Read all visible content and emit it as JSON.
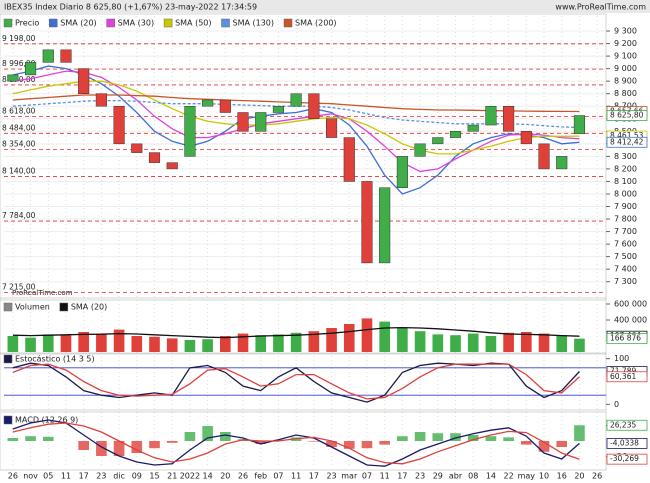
{
  "chart_data": [
    {
      "type": "candlestick",
      "title": "IBEX35 Index Diario 8 625,80 (+1,67%) 23-may-2022 17:34:59",
      "subtitle": "www.ProRealTime.com",
      "watermark": "ProRealTime.com",
      "name": "Precio",
      "categories": [
        "26",
        "nov",
        "05",
        "11",
        "17",
        "23",
        "dic",
        "09",
        "15",
        "21",
        "2022",
        "14",
        "20",
        "26",
        "feb",
        "07",
        "11",
        "17",
        "23",
        "mar",
        "07",
        "11",
        "17",
        "23",
        "29",
        "abr",
        "08",
        "14",
        "22",
        "may",
        "10",
        "16",
        "20",
        "26"
      ],
      "up_color": "#3fae49",
      "down_color": "#e0403a",
      "open": [
        8900,
        8950,
        9050,
        9150,
        9000,
        8800,
        8700,
        8400,
        8330,
        8250,
        8300,
        8700,
        8750,
        8650,
        8500,
        8650,
        8700,
        8800,
        8600,
        8450,
        8100,
        7450,
        8050,
        8300,
        8400,
        8450,
        8500,
        8550,
        8700,
        8500,
        8400,
        8200,
        8480,
        null
      ],
      "close": [
        8950,
        9050,
        9150,
        9050,
        8800,
        8700,
        8400,
        8330,
        8250,
        8200,
        8700,
        8750,
        8650,
        8500,
        8650,
        8700,
        8800,
        8600,
        8450,
        8100,
        7450,
        8050,
        8300,
        8400,
        8450,
        8500,
        8550,
        8700,
        8500,
        8400,
        8200,
        8300,
        8625.8,
        null
      ],
      "series": [
        {
          "name": "SMA (20)",
          "color": "#3d6fd6",
          "values": [
            8950,
            8980,
            9020,
            9000,
            8950,
            8880,
            8780,
            8650,
            8500,
            8420,
            8380,
            8420,
            8500,
            8600,
            8620,
            8640,
            8650,
            8680,
            8650,
            8550,
            8380,
            8150,
            8000,
            8050,
            8150,
            8300,
            8400,
            8450,
            8480,
            8470,
            8450,
            8400,
            8412.42,
            null
          ]
        },
        {
          "name": "SMA (30)",
          "color": "#e040e0",
          "values": [
            8900,
            8920,
            8950,
            8980,
            8970,
            8930,
            8850,
            8750,
            8620,
            8520,
            8450,
            8450,
            8480,
            8520,
            8560,
            8580,
            8600,
            8620,
            8640,
            8600,
            8500,
            8380,
            8250,
            8180,
            8200,
            8280,
            8350,
            8420,
            8470,
            8480,
            8470,
            8450,
            8440,
            null
          ]
        },
        {
          "name": "SMA (50)",
          "color": "#c8c800",
          "values": [
            8800,
            8830,
            8860,
            8880,
            8900,
            8900,
            8870,
            8820,
            8750,
            8680,
            8620,
            8580,
            8560,
            8550,
            8550,
            8560,
            8580,
            8600,
            8610,
            8600,
            8550,
            8480,
            8400,
            8350,
            8320,
            8320,
            8350,
            8380,
            8420,
            8450,
            8460,
            8460,
            8461.53,
            null
          ]
        },
        {
          "name": "SMA (130)",
          "color": "#5a8ee0",
          "values": [
            8700,
            8710,
            8720,
            8730,
            8740,
            8745,
            8745,
            8740,
            8730,
            8720,
            8720,
            8720,
            8715,
            8710,
            8705,
            8700,
            8700,
            8700,
            8690,
            8670,
            8640,
            8610,
            8590,
            8580,
            8570,
            8560,
            8560,
            8560,
            8560,
            8555,
            8545,
            8535,
            8530,
            null
          ]
        },
        {
          "name": "SMA (200)",
          "color": "#c9552a",
          "values": [
            8750,
            8760,
            8770,
            8780,
            8790,
            8790,
            8790,
            8785,
            8780,
            8770,
            8760,
            8755,
            8750,
            8745,
            8740,
            8735,
            8730,
            8725,
            8720,
            8710,
            8700,
            8690,
            8680,
            8675,
            8670,
            8670,
            8668,
            8665,
            8663,
            8661,
            8660,
            8659,
            8657.66,
            null
          ]
        }
      ],
      "level_color": "#e03030",
      "levels": [
        {
          "value": 9198,
          "label": "9 198,00"
        },
        {
          "value": 8996,
          "label": "8 996,00"
        },
        {
          "value": 8870,
          "label": "8 870,00"
        },
        {
          "value": 8618,
          "label": "8 618,00"
        },
        {
          "value": 8484,
          "label": "8 484,00"
        },
        {
          "value": 8354,
          "label": "8 354,00"
        },
        {
          "value": 8140,
          "label": "8 140,00"
        },
        {
          "value": 7784,
          "label": "7 784,00"
        },
        {
          "value": 7215,
          "label": "7 215,00"
        }
      ],
      "markers": [
        {
          "value": 8657.66,
          "label": "8 657,66",
          "color": "#c9552a"
        },
        {
          "value": 8625.8,
          "label": "8 625,80",
          "color": "#3fae49"
        },
        {
          "value": 8461.53,
          "label": "8 461,53",
          "color": "#c8c800"
        },
        {
          "value": 8412.42,
          "label": "8 412,42",
          "color": "#3d6fd6"
        }
      ],
      "ylim": [
        7170,
        9420
      ],
      "yticks": [
        {
          "value": 9300,
          "label": "9 300"
        },
        {
          "value": 9200,
          "label": "9 200"
        },
        {
          "value": 9100,
          "label": "9 100"
        },
        {
          "value": 9000,
          "label": "9 000"
        },
        {
          "value": 8900,
          "label": "8 900"
        },
        {
          "value": 8800,
          "label": "8 800"
        },
        {
          "value": 8700,
          "label": "8 700"
        },
        {
          "value": 8600,
          "label": "8 600"
        },
        {
          "value": 8500,
          "label": "8 500"
        },
        {
          "value": 8400,
          "label": "8 400"
        },
        {
          "value": 8300,
          "label": "8 300"
        },
        {
          "value": 8200,
          "label": "8 200"
        },
        {
          "value": 8100,
          "label": "8 100"
        },
        {
          "value": 8000,
          "label": "8 000"
        },
        {
          "value": 7900,
          "label": "7 900"
        },
        {
          "value": 7800,
          "label": "7 800"
        },
        {
          "value": 7700,
          "label": "7 700"
        },
        {
          "value": 7600,
          "label": "7 600"
        },
        {
          "value": 7500,
          "label": "7 500"
        },
        {
          "value": 7400,
          "label": "7 400"
        },
        {
          "value": 7300,
          "label": "7 300"
        }
      ],
      "grid": true
    },
    {
      "type": "volume",
      "name": "Volumen",
      "values": [
        200000,
        180000,
        220000,
        210000,
        250000,
        230000,
        280000,
        200000,
        190000,
        170000,
        150000,
        160000,
        200000,
        230000,
        210000,
        220000,
        240000,
        260000,
        300000,
        350000,
        420000,
        380000,
        300000,
        260000,
        220000,
        210000,
        230000,
        200000,
        240000,
        250000,
        230000,
        210000,
        166876,
        null
      ],
      "series": [
        {
          "name": "SMA (20)",
          "color": "#111111",
          "values": [
            210000,
            205000,
            210000,
            215000,
            220000,
            222000,
            230000,
            225000,
            215000,
            205000,
            195000,
            185000,
            180000,
            190000,
            200000,
            205000,
            210000,
            220000,
            235000,
            255000,
            280000,
            300000,
            305000,
            300000,
            290000,
            275000,
            260000,
            240000,
            225000,
            220000,
            215000,
            205000,
            197464,
            null
          ]
        }
      ],
      "markers": [
        {
          "value": 197464,
          "label": "197 464",
          "color": "#111111"
        },
        {
          "value": 166876,
          "label": "166 876",
          "color": "#3fae49"
        }
      ],
      "ylim": [
        0,
        650000
      ],
      "yticks": [
        {
          "value": 600000,
          "label": "600 000"
        },
        {
          "value": 400000,
          "label": "400 000"
        }
      ]
    },
    {
      "type": "stochastic",
      "name": "Estocástico (14 3 5)",
      "series": [
        {
          "color": "#1a1a4a",
          "values": [
            80,
            90,
            85,
            60,
            30,
            20,
            15,
            20,
            25,
            20,
            80,
            85,
            70,
            40,
            30,
            60,
            80,
            50,
            25,
            15,
            5,
            20,
            70,
            85,
            90,
            88,
            85,
            90,
            88,
            40,
            15,
            30,
            71.789,
            null
          ]
        },
        {
          "color": "#e0403a",
          "values": [
            70,
            85,
            88,
            75,
            50,
            30,
            20,
            18,
            20,
            22,
            45,
            75,
            78,
            60,
            40,
            45,
            65,
            65,
            45,
            25,
            12,
            15,
            35,
            60,
            80,
            88,
            88,
            88,
            88,
            65,
            30,
            25,
            60.361,
            null
          ]
        }
      ],
      "levels": [
        80,
        20
      ],
      "level_color": "#3040d0",
      "markers": [
        {
          "value": 71.789,
          "label": "71,789",
          "color": "#1a1a4a"
        },
        {
          "value": 60.361,
          "label": "60,361",
          "color": "#e0403a"
        }
      ],
      "ylim": [
        -8,
        108
      ],
      "yticks": [
        100,
        0
      ]
    },
    {
      "type": "macd",
      "name": "MACD (12 26 9)",
      "histogram": {
        "up_color": "#3fae49",
        "down_color": "#e0403a",
        "values": [
          5,
          8,
          7,
          0,
          -15,
          -25,
          -25,
          -20,
          -12,
          -3,
          15,
          25,
          15,
          3,
          -5,
          2,
          6,
          -1,
          -10,
          -13,
          -12,
          -6,
          8,
          15,
          13,
          13,
          10,
          8,
          6,
          -6,
          -18,
          -10,
          26.235,
          null
        ]
      },
      "series": [
        {
          "color": "#1a1a6a",
          "values": [
            20,
            30,
            35,
            30,
            10,
            -10,
            -25,
            -35,
            -40,
            -38,
            -15,
            5,
            10,
            5,
            -5,
            2,
            10,
            5,
            -10,
            -25,
            -40,
            -42,
            -30,
            -15,
            -5,
            5,
            12,
            18,
            22,
            8,
            -20,
            -30,
            -4.0338,
            null
          ]
        },
        {
          "color": "#e0403a",
          "values": [
            15,
            22,
            28,
            30,
            25,
            15,
            0,
            -15,
            -28,
            -35,
            -30,
            -20,
            -5,
            2,
            0,
            0,
            4,
            6,
            0,
            -12,
            -28,
            -36,
            -38,
            -30,
            -18,
            -8,
            2,
            10,
            16,
            14,
            -2,
            -20,
            -30.269,
            null
          ]
        }
      ],
      "markers": [
        {
          "value": 26.235,
          "label": "26,235",
          "color": "#3fae49"
        },
        {
          "value": -4.0338,
          "label": "-4,0338",
          "color": "#1a1a6a"
        },
        {
          "value": -30.269,
          "label": "-30,269",
          "color": "#e0403a"
        }
      ],
      "ylim": [
        -45,
        45
      ],
      "yticks": [
        26,
        -26
      ]
    }
  ]
}
